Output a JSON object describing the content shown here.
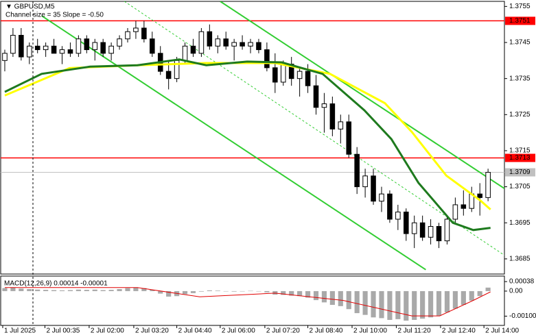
{
  "chart_data": [
    {
      "type": "candlestick",
      "title": "▼ GBPUSD,M5",
      "subtitle": "Channel size = 35 Slope = -0.50",
      "xlim": [
        -0.5,
        61
      ],
      "ylim": [
        1.36808,
        1.37564
      ],
      "yticks": [
        1.3755,
        1.3745,
        1.3735,
        1.3725,
        1.3715,
        1.3705,
        1.3695,
        1.3685
      ],
      "xticks": [
        {
          "value": -0.25,
          "label": "1 Jul 2025"
        },
        {
          "value": 4.9,
          "label": "2 Jul 00:35"
        },
        {
          "value": 10.3,
          "label": "2 Jul 02:00"
        },
        {
          "value": 15.75,
          "label": "2 Jul 03:20"
        },
        {
          "value": 21,
          "label": "2 Jul 04:40"
        },
        {
          "value": 26.3,
          "label": "2 Jul 06:00"
        },
        {
          "value": 31.75,
          "label": "2 Jul 07:20"
        },
        {
          "value": 37,
          "label": "2 Jul 08:40"
        },
        {
          "value": 42.4,
          "label": "2 Jul 10:00"
        },
        {
          "value": 47.8,
          "label": "2 Jul 11:20"
        },
        {
          "value": 53.2,
          "label": "2 Jul 12:40"
        },
        {
          "value": 58.5,
          "label": "2 Jul 14:00"
        }
      ],
      "candles": [
        [
          1.374,
          1.3743,
          1.3737,
          1.3742
        ],
        [
          1.3742,
          1.3749,
          1.3741,
          1.3747
        ],
        [
          1.3747,
          1.3749,
          1.374,
          1.3741
        ],
        [
          1.3741,
          1.3745,
          1.3739,
          1.3744
        ],
        [
          1.3744,
          1.3746,
          1.3742,
          1.3743
        ],
        [
          1.3743,
          1.3745,
          1.3741,
          1.3744
        ],
        [
          1.3744,
          1.3746,
          1.3742,
          1.3742
        ],
        [
          1.3742,
          1.3744,
          1.3739,
          1.3743
        ],
        [
          1.3743,
          1.3745,
          1.3741,
          1.3742
        ],
        [
          1.3742,
          1.3747,
          1.3741,
          1.3746
        ],
        [
          1.3746,
          1.3747,
          1.3742,
          1.3743
        ],
        [
          1.3743,
          1.3746,
          1.374,
          1.3745
        ],
        [
          1.3745,
          1.3746,
          1.3741,
          1.3742
        ],
        [
          1.3742,
          1.3745,
          1.374,
          1.3744
        ],
        [
          1.3744,
          1.3747,
          1.3743,
          1.3746
        ],
        [
          1.3746,
          1.3749,
          1.3745,
          1.3748
        ],
        [
          1.3748,
          1.3751,
          1.3746,
          1.3749
        ],
        [
          1.3749,
          1.3751,
          1.3745,
          1.3746
        ],
        [
          1.3746,
          1.3748,
          1.3741,
          1.3742
        ],
        [
          1.3742,
          1.3744,
          1.3736,
          1.3737
        ],
        [
          1.3737,
          1.374,
          1.3732,
          1.3735
        ],
        [
          1.3735,
          1.3741,
          1.3734,
          1.374
        ],
        [
          1.374,
          1.3745,
          1.3739,
          1.3744
        ],
        [
          1.3744,
          1.3746,
          1.3741,
          1.3742
        ],
        [
          1.3742,
          1.3749,
          1.3741,
          1.3748
        ],
        [
          1.3748,
          1.375,
          1.3743,
          1.3744
        ],
        [
          1.3744,
          1.3747,
          1.3742,
          1.3746
        ],
        [
          1.3746,
          1.3748,
          1.3743,
          1.3744
        ],
        [
          1.3744,
          1.3746,
          1.374,
          1.3745
        ],
        [
          1.3745,
          1.3747,
          1.3743,
          1.3744
        ],
        [
          1.3744,
          1.3746,
          1.3742,
          1.3745
        ],
        [
          1.3745,
          1.3746,
          1.3742,
          1.3743
        ],
        [
          1.3743,
          1.3745,
          1.3737,
          1.3738
        ],
        [
          1.3738,
          1.3742,
          1.3731,
          1.3734
        ],
        [
          1.3734,
          1.374,
          1.3733,
          1.3739
        ],
        [
          1.3739,
          1.3741,
          1.3733,
          1.3735
        ],
        [
          1.3735,
          1.3738,
          1.373,
          1.3737
        ],
        [
          1.3737,
          1.3739,
          1.3731,
          1.3733
        ],
        [
          1.3733,
          1.3736,
          1.3725,
          1.3727
        ],
        [
          1.3727,
          1.3731,
          1.372,
          1.3728
        ],
        [
          1.3728,
          1.373,
          1.3719,
          1.3721
        ],
        [
          1.3721,
          1.3725,
          1.3717,
          1.3723
        ],
        [
          1.3723,
          1.3725,
          1.3713,
          1.3714
        ],
        [
          1.3714,
          1.3716,
          1.3703,
          1.3705
        ],
        [
          1.3705,
          1.371,
          1.3702,
          1.3708
        ],
        [
          1.3708,
          1.371,
          1.37,
          1.3701
        ],
        [
          1.3701,
          1.3705,
          1.3698,
          1.3703
        ],
        [
          1.3703,
          1.3704,
          1.3695,
          1.3696
        ],
        [
          1.3696,
          1.37,
          1.3693,
          1.3698
        ],
        [
          1.3698,
          1.3699,
          1.369,
          1.3692
        ],
        [
          1.3692,
          1.3697,
          1.3688,
          1.3695
        ],
        [
          1.3695,
          1.3697,
          1.369,
          1.3691
        ],
        [
          1.3691,
          1.3696,
          1.3689,
          1.3694
        ],
        [
          1.3694,
          1.3695,
          1.3688,
          1.369
        ],
        [
          1.369,
          1.3697,
          1.3689,
          1.3696
        ],
        [
          1.3696,
          1.3702,
          1.3695,
          1.37
        ],
        [
          1.37,
          1.3704,
          1.3697,
          1.3699
        ],
        [
          1.3699,
          1.3705,
          1.3698,
          1.3703
        ],
        [
          1.3703,
          1.3706,
          1.3697,
          1.3702
        ],
        [
          1.3702,
          1.371,
          1.3701,
          1.3709
        ]
      ],
      "up_color": "#ffffff",
      "down_color": "#000000",
      "lines": [
        {
          "color": "#ffff00",
          "x": [
            0,
            7.9,
            16.2,
            24.6,
            33,
            39.7,
            46.4,
            49.7,
            53.9,
            58.1,
            59.3
          ],
          "values": [
            1.37303,
            1.37379,
            1.37387,
            1.37393,
            1.37393,
            1.37363,
            1.37282,
            1.37202,
            1.37081,
            1.37011,
            1.36987
          ]
        },
        {
          "color": "#1e7a1e",
          "x": [
            0,
            4.5,
            10.4,
            16.2,
            21.3,
            24.6,
            29.6,
            33.8,
            38.8,
            43.9,
            47.2,
            50.5,
            54.7,
            57.2,
            59.3
          ],
          "values": [
            1.37313,
            1.37363,
            1.37383,
            1.37387,
            1.37403,
            1.37387,
            1.37397,
            1.37395,
            1.37363,
            1.37262,
            1.37182,
            1.37061,
            1.3695,
            1.3693,
            1.36936
          ]
        }
      ],
      "trendlines": [
        {
          "color": "#32cd32",
          "dashed": false,
          "x": [
            26.3,
            61
          ],
          "values": [
            1.37564,
            1.37045
          ]
        },
        {
          "color": "#32cd32",
          "dashed": false,
          "x": [
            4.5,
            51.4
          ],
          "values": [
            1.37524,
            1.3682
          ]
        },
        {
          "color": "#32cd32",
          "dashed": true,
          "x": [
            14.6,
            61
          ],
          "values": [
            1.37564,
            1.3686
          ]
        }
      ],
      "levels": [
        {
          "value": 1.3751,
          "color": "#ff0000"
        },
        {
          "value": 1.3713,
          "color": "#ff0000"
        },
        {
          "value": 1.3709,
          "color": "#c0c0c0"
        }
      ]
    },
    {
      "type": "macd",
      "title": "MACD(12,26,9) 0.00014 -0.00001",
      "xlim": [
        -0.5,
        61
      ],
      "ylim": [
        -0.00137,
        0.0006
      ],
      "yticks": [
        0.00038,
        {
          "value": 0,
          "label": "0.00"
        },
        {
          "value": -0.001,
          "label": "-0.00100"
        }
      ],
      "color": "#a9a9a9",
      "values": [
        0.00012,
        0.00015,
        0.0001,
        8e-05,
        6e-05,
        5e-05,
        4e-05,
        3e-05,
        4e-05,
        6e-05,
        5e-05,
        6e-05,
        4e-05,
        5e-05,
        8e-05,
        0.00012,
        0.00015,
        0.00012,
        5e-05,
        -0.0001,
        -0.00022,
        -0.0002,
        -0.00012,
        -8e-05,
        -2e-05,
        3e-05,
        2e-05,
        0.0,
        -2e-05,
        -1e-05,
        1e-05,
        0.0,
        -5e-05,
        -0.00014,
        -0.00015,
        -0.00018,
        -0.0002,
        -0.00026,
        -0.00036,
        -0.00045,
        -0.00055,
        -0.0006,
        -0.00072,
        -0.00088,
        -0.00095,
        -0.00105,
        -0.00108,
        -0.00115,
        -0.00112,
        -0.00118,
        -0.00115,
        -0.0011,
        -0.00105,
        -0.00098,
        -0.00085,
        -0.0007,
        -0.00055,
        -0.00038,
        -0.0002,
        0.00014
      ],
      "signal": {
        "color": "#e00000",
        "x": [
          0,
          16.2,
          23.8,
          33,
          41.3,
          49.7,
          53.1,
          57.2,
          59.3
        ],
        "values": [
          0.00014,
          0.00014,
          -0.00023,
          -8e-05,
          -0.00037,
          -0.00099,
          -0.00099,
          -0.00037,
          -3e-05
        ]
      }
    }
  ]
}
